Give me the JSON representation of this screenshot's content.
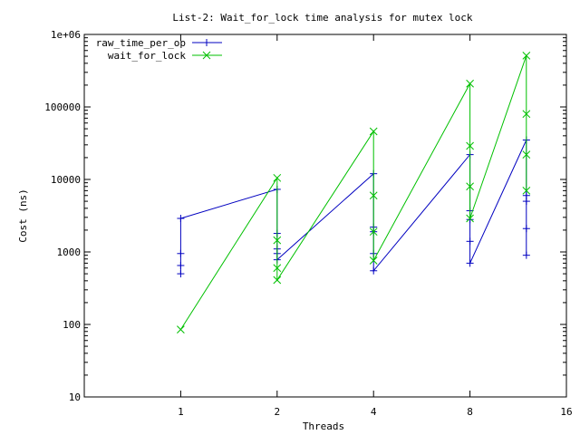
{
  "chart_data": {
    "type": "line",
    "title": "List-2: Wait_for_lock time analysis for mutex lock",
    "xlabel": "Threads",
    "ylabel": "Cost (ns)",
    "x_scale": "log2",
    "y_scale": "log10",
    "xlim": [
      0.5,
      16
    ],
    "ylim": [
      10,
      1000000
    ],
    "x_ticks": [
      1,
      2,
      4,
      8,
      16
    ],
    "x_tick_labels": [
      "1",
      "2",
      "4",
      "8",
      "16"
    ],
    "y_ticks": [
      10,
      100,
      1000,
      10000,
      100000,
      1000000
    ],
    "y_tick_labels": [
      "10",
      "100",
      "1000",
      "10000",
      "100000",
      "1e+06"
    ],
    "legend_position": "top-left",
    "series": [
      {
        "name": "raw_time_per_op",
        "color": "#0000c0",
        "marker": "plus",
        "x": [
          1,
          1,
          1,
          1,
          2,
          2,
          2,
          2,
          2,
          4,
          4,
          4,
          4,
          4,
          8,
          8,
          8,
          8,
          8,
          12,
          12,
          12,
          12,
          12
        ],
        "y": [
          500,
          650,
          950,
          2900,
          7300,
          1800,
          1100,
          950,
          780,
          12000,
          2200,
          1900,
          950,
          550,
          22000,
          3700,
          2800,
          1400,
          700,
          35000,
          6000,
          5000,
          2100,
          900
        ]
      },
      {
        "name": "wait_for_lock",
        "color": "#00c000",
        "marker": "cross",
        "x": [
          1,
          2,
          2,
          2,
          2,
          4,
          4,
          4,
          4,
          8,
          8,
          8,
          8,
          12,
          12,
          12,
          12
        ],
        "y": [
          85,
          10500,
          1450,
          600,
          410,
          46000,
          6000,
          1900,
          760,
          210000,
          29000,
          8000,
          2900,
          510000,
          80000,
          22000,
          7000
        ]
      }
    ]
  }
}
